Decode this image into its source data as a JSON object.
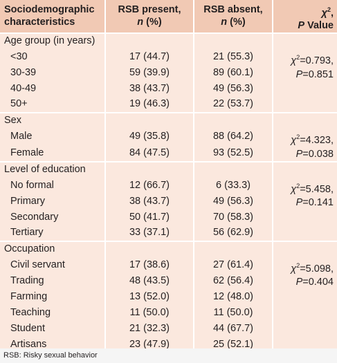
{
  "header": {
    "col1_line1": "Sociodemographic",
    "col1_line2": "characteristics",
    "col2_line1": "RSB present,",
    "col2_n": "n",
    "col2_pct": " (%)",
    "col3_line1": "RSB absent,",
    "col3_n": "n",
    "col3_pct": " (%)",
    "col4_chi": "χ",
    "col4_sup": "2",
    "col4_comma": ",",
    "col4_p": "P",
    "col4_value": " Value"
  },
  "groups": [
    {
      "title": "Age group (in years)",
      "stat_line1": "=0.793,",
      "stat_line2": "=0.851",
      "rows": [
        {
          "label": "<30",
          "present": "17 (44.7)",
          "absent": "21 (55.3)"
        },
        {
          "label": "30-39",
          "present": "59 (39.9)",
          "absent": "89 (60.1)"
        },
        {
          "label": "40-49",
          "present": "38 (43.7)",
          "absent": "49 (56.3)"
        },
        {
          "label": "50+",
          "present": "19 (46.3)",
          "absent": "22 (53.7)"
        }
      ]
    },
    {
      "title": "Sex",
      "stat_line1": "=4.323,",
      "stat_line2": "=0.038",
      "rows": [
        {
          "label": "Male",
          "present": "49 (35.8)",
          "absent": "88 (64.2)"
        },
        {
          "label": "Female",
          "present": "84 (47.5)",
          "absent": "93 (52.5)"
        }
      ]
    },
    {
      "title": "Level of education",
      "stat_line1": "=5.458,",
      "stat_line2": "=0.141",
      "rows": [
        {
          "label": "No formal",
          "present": "12 (66.7)",
          "absent": "6 (33.3)"
        },
        {
          "label": "Primary",
          "present": "38 (43.7)",
          "absent": "49 (56.3)"
        },
        {
          "label": "Secondary",
          "present": "50 (41.7)",
          "absent": "70 (58.3)"
        },
        {
          "label": "Tertiary",
          "present": "33 (37.1)",
          "absent": "56 (62.9)"
        }
      ]
    },
    {
      "title": "Occupation",
      "stat_line1": "=5.098,",
      "stat_line2": "=0.404",
      "rows": [
        {
          "label": "Civil servant",
          "present": "17 (38.6)",
          "absent": "27 (61.4)"
        },
        {
          "label": "Trading",
          "present": "48 (43.5)",
          "absent": "62 (56.4)"
        },
        {
          "label": "Farming",
          "present": "13 (52.0)",
          "absent": "12 (48.0)"
        },
        {
          "label": "Teaching",
          "present": "11 (50.0)",
          "absent": "11 (50.0)"
        },
        {
          "label": "Student",
          "present": "21 (32.3)",
          "absent": "44 (67.7)"
        },
        {
          "label": "Artisans",
          "present": "23 (47.9)",
          "absent": "25 (52.1)"
        }
      ]
    }
  ],
  "stat_chi": "χ",
  "stat_sup": "2",
  "stat_p": "P",
  "footnote": "RSB: Risky sexual behavior",
  "colors": {
    "header_bg": "#f1c9b4",
    "body_bg": "#fbe8de",
    "footnote_bg": "#f5f5f5"
  }
}
